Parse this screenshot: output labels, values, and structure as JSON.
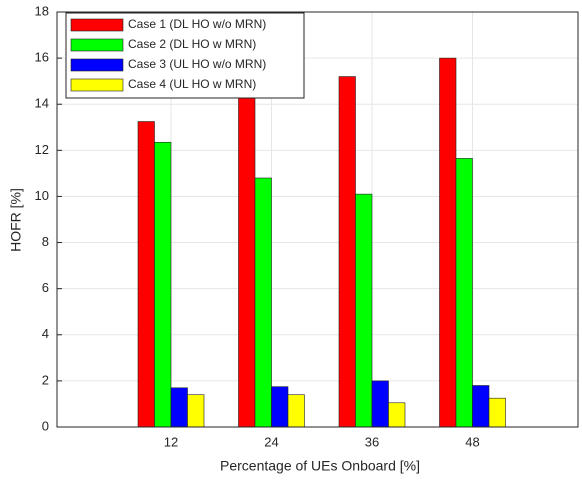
{
  "chart_data": {
    "type": "bar",
    "xlabel": "Percentage of UEs Onboard [%]",
    "ylabel": "HOFR [%]",
    "categories": [
      "12",
      "24",
      "36",
      "48"
    ],
    "series": [
      {
        "name": "Case 1 (DL HO w/o MRN)",
        "color": "#ff0000",
        "values": [
          13.25,
          14.4,
          15.2,
          16.0
        ]
      },
      {
        "name": "Case 2 (DL HO w MRN)",
        "color": "#00ff00",
        "values": [
          12.35,
          10.8,
          10.1,
          11.65
        ]
      },
      {
        "name": "Case 3 (UL HO w/o MRN)",
        "color": "#0000ff",
        "values": [
          1.7,
          1.75,
          2.0,
          1.8
        ]
      },
      {
        "name": "Case 4 (UL HO w MRN)",
        "color": "#ffff00",
        "values": [
          1.4,
          1.4,
          1.05,
          1.25
        ]
      }
    ],
    "ylim": [
      0,
      18
    ],
    "yticks": [
      0,
      2,
      4,
      6,
      8,
      10,
      12,
      14,
      16,
      18
    ],
    "grid": true,
    "legend": "top-left"
  }
}
